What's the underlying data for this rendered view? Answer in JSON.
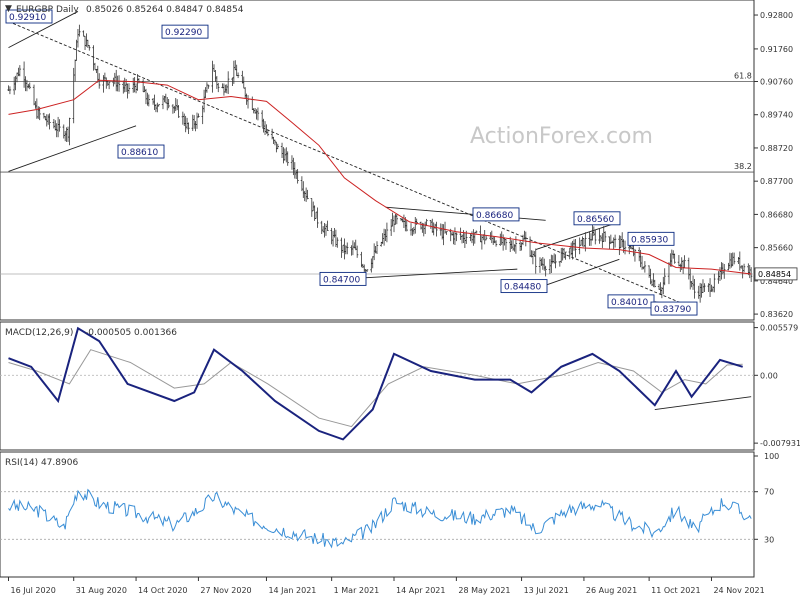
{
  "header": {
    "symbol_label": "EURGBP Daily",
    "ohlc": "0.85026 0.85264 0.84847 0.84854",
    "watermark": "ActionForex.com"
  },
  "chart_data": [
    {
      "type": "candlestick",
      "title": "EURGBP Daily",
      "ohlc_last": {
        "open": 0.85026,
        "high": 0.85264,
        "low": 0.84847,
        "close": 0.84854
      },
      "ylim": [
        0.835,
        0.932
      ],
      "y_ticks": [
        "0.92800",
        "0.91760",
        "0.90760",
        "0.89740",
        "0.88720",
        "0.87700",
        "0.86680",
        "0.85660",
        "0.84640",
        "0.83620"
      ],
      "x_ticks": [
        "16 Jul 2020",
        "31 Aug 2020",
        "14 Oct 2020",
        "27 Nov 2020",
        "14 Jan 2021",
        "1 Mar 2021",
        "14 Apr 2021",
        "28 May 2021",
        "13 Jul 2021",
        "26 Aug 2021",
        "11 Oct 2021",
        "24 Nov 2021"
      ],
      "last_price_label": "0.84854",
      "fib_levels": [
        {
          "label": "61.8",
          "value": 0.9076
        },
        {
          "label": "38.2",
          "value": 0.8798
        }
      ],
      "annotations": [
        {
          "label": "0.92910",
          "value": 0.9291,
          "date": "2020-09-03"
        },
        {
          "label": "0.92290",
          "value": 0.9229,
          "date": "2020-12-11"
        },
        {
          "label": "0.88610",
          "value": 0.8861,
          "date": "2020-09-25"
        },
        {
          "label": "0.84700",
          "value": 0.847,
          "date": "2021-03-10"
        },
        {
          "label": "0.86680",
          "value": 0.8668,
          "date": "2021-06-28"
        },
        {
          "label": "0.84480",
          "value": 0.8448,
          "date": "2021-07-23"
        },
        {
          "label": "0.86560",
          "value": 0.8656,
          "date": "2021-09-07"
        },
        {
          "label": "0.85930",
          "value": 0.8593,
          "date": "2021-10-27"
        },
        {
          "label": "0.84010",
          "value": 0.8401,
          "date": "2021-10-15"
        },
        {
          "label": "0.83790",
          "value": 0.8379,
          "date": "2021-11-12"
        }
      ],
      "price_path": [
        [
          "2020-07-16",
          0.905
        ],
        [
          "2020-07-25",
          0.912
        ],
        [
          "2020-08-05",
          0.898
        ],
        [
          "2020-08-20",
          0.893
        ],
        [
          "2020-08-27",
          0.892
        ],
        [
          "2020-09-03",
          0.923
        ],
        [
          "2020-09-11",
          0.918
        ],
        [
          "2020-09-18",
          0.908
        ],
        [
          "2020-09-28",
          0.908
        ],
        [
          "2020-10-08",
          0.905
        ],
        [
          "2020-10-16",
          0.907
        ],
        [
          "2020-10-24",
          0.9
        ],
        [
          "2020-11-05",
          0.902
        ],
        [
          "2020-11-15",
          0.897
        ],
        [
          "2020-11-20",
          0.893
        ],
        [
          "2020-11-28",
          0.897
        ],
        [
          "2020-12-07",
          0.912
        ],
        [
          "2020-12-12",
          0.904
        ],
        [
          "2020-12-23",
          0.911
        ],
        [
          "2021-01-01",
          0.902
        ],
        [
          "2021-01-08",
          0.898
        ],
        [
          "2021-01-14",
          0.892
        ],
        [
          "2021-01-22",
          0.887
        ],
        [
          "2021-02-01",
          0.882
        ],
        [
          "2021-02-10",
          0.874
        ],
        [
          "2021-02-20",
          0.864
        ],
        [
          "2021-03-01",
          0.86
        ],
        [
          "2021-03-09",
          0.856
        ],
        [
          "2021-03-17",
          0.856
        ],
        [
          "2021-03-25",
          0.85
        ],
        [
          "2021-04-02",
          0.856
        ],
        [
          "2021-04-14",
          0.865
        ],
        [
          "2021-04-24",
          0.863
        ],
        [
          "2021-05-06",
          0.864
        ],
        [
          "2021-05-18",
          0.861
        ],
        [
          "2021-05-30",
          0.86
        ],
        [
          "2021-06-12",
          0.86
        ],
        [
          "2021-06-25",
          0.859
        ],
        [
          "2021-07-05",
          0.857
        ],
        [
          "2021-07-15",
          0.859
        ],
        [
          "2021-07-23",
          0.852
        ],
        [
          "2021-08-03",
          0.851
        ],
        [
          "2021-08-12",
          0.855
        ],
        [
          "2021-08-21",
          0.857
        ],
        [
          "2021-09-01",
          0.86
        ],
        [
          "2021-09-10",
          0.86
        ],
        [
          "2021-09-18",
          0.858
        ],
        [
          "2021-09-26",
          0.857
        ],
        [
          "2021-10-04",
          0.853
        ],
        [
          "2021-10-12",
          0.847
        ],
        [
          "2021-10-20",
          0.844
        ],
        [
          "2021-10-27",
          0.854
        ],
        [
          "2021-11-06",
          0.851
        ],
        [
          "2021-11-12",
          0.843
        ],
        [
          "2021-11-20",
          0.844
        ],
        [
          "2021-11-28",
          0.846
        ],
        [
          "2021-12-04",
          0.852
        ],
        [
          "2021-12-10",
          0.853
        ],
        [
          "2021-12-16",
          0.851
        ],
        [
          "2021-12-22",
          0.849
        ]
      ],
      "ma_path": [
        [
          "2020-07-16",
          0.8975
        ],
        [
          "2020-08-05",
          0.899
        ],
        [
          "2020-08-31",
          0.902
        ],
        [
          "2020-09-18",
          0.908
        ],
        [
          "2020-10-14",
          0.9075
        ],
        [
          "2020-11-05",
          0.9065
        ],
        [
          "2020-11-27",
          0.902
        ],
        [
          "2020-12-20",
          0.903
        ],
        [
          "2021-01-14",
          0.9015
        ],
        [
          "2021-02-01",
          0.895
        ],
        [
          "2021-02-20",
          0.888
        ],
        [
          "2021-03-10",
          0.878
        ],
        [
          "2021-04-01",
          0.871
        ],
        [
          "2021-04-25",
          0.8645
        ],
        [
          "2021-05-28",
          0.8615
        ],
        [
          "2021-06-25",
          0.86
        ],
        [
          "2021-07-25",
          0.858
        ],
        [
          "2021-08-26",
          0.8565
        ],
        [
          "2021-09-20",
          0.856
        ],
        [
          "2021-10-11",
          0.8545
        ],
        [
          "2021-10-30",
          0.8505
        ],
        [
          "2021-11-24",
          0.85
        ],
        [
          "2021-12-22",
          0.8485
        ]
      ],
      "trendlines": [
        {
          "name": "upper-channel",
          "from": [
            "2020-07-16",
            0.918
          ],
          "to": [
            "2020-09-03",
            0.9291
          ]
        },
        {
          "name": "lower-channel",
          "from": [
            "2020-07-16",
            0.88
          ],
          "to": [
            "2020-10-14",
            0.894
          ]
        },
        {
          "name": "downtrend-dashed",
          "from": [
            "2020-07-16",
            0.926
          ],
          "to": [
            "2021-11-12",
            0.8379
          ]
        },
        {
          "name": "triangle-top",
          "from": [
            "2021-04-08",
            0.869
          ],
          "to": [
            "2021-07-30",
            0.865
          ]
        },
        {
          "name": "triangle-bottom",
          "from": [
            "2021-03-10",
            0.847
          ],
          "to": [
            "2021-07-10",
            0.85
          ]
        },
        {
          "name": "aug-channel-top",
          "from": [
            "2021-07-23",
            0.856
          ],
          "to": [
            "2021-09-20",
            0.8645
          ]
        },
        {
          "name": "aug-channel-bottom",
          "from": [
            "2021-07-23",
            0.844
          ],
          "to": [
            "2021-09-20",
            0.853
          ]
        },
        {
          "name": "nov-support",
          "from": [
            "2021-10-15",
            0.84
          ],
          "to": [
            "2021-11-12",
            0.8379
          ]
        }
      ],
      "horizontal_lines": [
        0.8485
      ]
    },
    {
      "type": "line",
      "title": "MACD(12,26,9)",
      "value_labels": "-0.000505 0.001366",
      "y_ticks": [
        "0.005579",
        "0.00",
        "-0.007931"
      ],
      "ylim": [
        -0.0085,
        0.006
      ],
      "macd": [
        [
          "2020-07-16",
          0.002
        ],
        [
          "2020-08-01",
          0.001
        ],
        [
          "2020-08-20",
          -0.003
        ],
        [
          "2020-09-03",
          0.0055
        ],
        [
          "2020-09-18",
          0.004
        ],
        [
          "2020-10-08",
          -0.001
        ],
        [
          "2020-11-10",
          -0.003
        ],
        [
          "2020-11-24",
          -0.002
        ],
        [
          "2020-12-08",
          0.003
        ],
        [
          "2020-12-28",
          0.0005
        ],
        [
          "2021-01-20",
          -0.003
        ],
        [
          "2021-02-20",
          -0.0065
        ],
        [
          "2021-03-09",
          -0.0075
        ],
        [
          "2021-03-30",
          -0.004
        ],
        [
          "2021-04-14",
          0.0025
        ],
        [
          "2021-05-10",
          0.0005
        ],
        [
          "2021-06-10",
          -0.0005
        ],
        [
          "2021-07-05",
          -0.0005
        ],
        [
          "2021-07-20",
          -0.002
        ],
        [
          "2021-08-10",
          0.001
        ],
        [
          "2021-09-01",
          0.0025
        ],
        [
          "2021-09-20",
          0.0005
        ],
        [
          "2021-10-15",
          -0.0035
        ],
        [
          "2021-10-30",
          0.0005
        ],
        [
          "2021-11-10",
          -0.0025
        ],
        [
          "2021-11-30",
          0.0018
        ],
        [
          "2021-12-16",
          0.001
        ]
      ],
      "signal": [
        [
          "2020-07-16",
          0.0015
        ],
        [
          "2020-08-05",
          0.0005
        ],
        [
          "2020-08-28",
          -0.001
        ],
        [
          "2020-09-12",
          0.003
        ],
        [
          "2020-10-10",
          0.0015
        ],
        [
          "2020-11-10",
          -0.0015
        ],
        [
          "2020-12-01",
          -0.001
        ],
        [
          "2020-12-20",
          0.0015
        ],
        [
          "2021-01-15",
          -0.001
        ],
        [
          "2021-02-20",
          -0.005
        ],
        [
          "2021-03-15",
          -0.006
        ],
        [
          "2021-04-10",
          -0.001
        ],
        [
          "2021-05-05",
          0.001
        ],
        [
          "2021-06-10",
          0.0
        ],
        [
          "2021-07-10",
          -0.001
        ],
        [
          "2021-08-10",
          0.0
        ],
        [
          "2021-09-05",
          0.0015
        ],
        [
          "2021-09-30",
          0.0005
        ],
        [
          "2021-10-20",
          -0.002
        ],
        [
          "2021-11-05",
          -0.0005
        ],
        [
          "2021-11-20",
          -0.001
        ],
        [
          "2021-12-05",
          0.0012
        ],
        [
          "2021-12-16",
          0.0013
        ]
      ],
      "trendline": {
        "from": [
          "2021-10-15",
          -0.004
        ],
        "to": [
          "2021-12-22",
          -0.0025
        ]
      }
    },
    {
      "type": "line",
      "title": "RSI(14) 47.8906",
      "y_ticks": [
        "100",
        "70",
        "30"
      ],
      "ylim": [
        0,
        100
      ],
      "levels": [
        70,
        30
      ],
      "rsi": [
        [
          "2020-07-16",
          58
        ],
        [
          "2020-08-05",
          55
        ],
        [
          "2020-08-24",
          40
        ],
        [
          "2020-09-03",
          72
        ],
        [
          "2020-09-18",
          60
        ],
        [
          "2020-10-14",
          52
        ],
        [
          "2020-11-10",
          42
        ],
        [
          "2020-11-27",
          55
        ],
        [
          "2020-12-08",
          66
        ],
        [
          "2020-12-28",
          50
        ],
        [
          "2021-01-20",
          40
        ],
        [
          "2021-02-20",
          30
        ],
        [
          "2021-03-09",
          26
        ],
        [
          "2021-03-30",
          40
        ],
        [
          "2021-04-14",
          62
        ],
        [
          "2021-05-10",
          52
        ],
        [
          "2021-06-10",
          48
        ],
        [
          "2021-07-05",
          55
        ],
        [
          "2021-07-23",
          38
        ],
        [
          "2021-08-15",
          55
        ],
        [
          "2021-09-05",
          60
        ],
        [
          "2021-09-25",
          45
        ],
        [
          "2021-10-15",
          35
        ],
        [
          "2021-10-30",
          55
        ],
        [
          "2021-11-12",
          38
        ],
        [
          "2021-12-02",
          62
        ],
        [
          "2021-12-22",
          48
        ]
      ]
    }
  ],
  "colors": {
    "panel_border": "#333333",
    "grid": "#e6e6e6",
    "price": "#333333",
    "ma": "#cc2222",
    "macd": "#1a237e",
    "signal": "#999999",
    "rsi": "#3a8ed6",
    "label_box_border": "#0a2a80",
    "label_text": "#1a237e",
    "watermark": "#c8c8c8"
  }
}
